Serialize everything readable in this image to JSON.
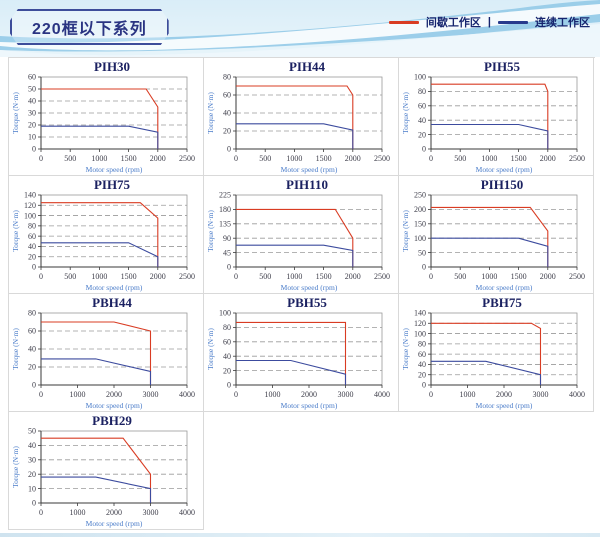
{
  "header": {
    "title": "220框以下系列",
    "legend": [
      {
        "label": "间歇工作区",
        "color": "#d93c23"
      },
      {
        "label": "连续工作区",
        "color": "#273a8c"
      }
    ],
    "legend_separator": "|"
  },
  "colors": {
    "intermittent_line": "#d93c23",
    "continuous_line": "#3c4b9e",
    "plot_border": "#999999",
    "axis": "#3a3a3a",
    "gridline": "#9a9a9a",
    "tick_text": "#41414d",
    "axis_label_text": "#4a7cc9",
    "title_text": "#1b2161",
    "cell_border": "#d9d9d9"
  },
  "chart_data": [
    {
      "type": "line",
      "title": "PIH30",
      "xlabel": "Motor speed (rpm)",
      "ylabel": "Torque (N·m)",
      "xlim": [
        0,
        2500
      ],
      "xticks": [
        0,
        500,
        1000,
        1500,
        2000,
        2500
      ],
      "ylim": [
        0,
        60
      ],
      "yticks": [
        0,
        10,
        20,
        30,
        40,
        50,
        60
      ],
      "grid": "dashed-horizontal",
      "legend_position": "none",
      "series": [
        {
          "name": "间歇工作区",
          "color": "#d93c23",
          "points": [
            [
              0,
              50
            ],
            [
              1800,
              50
            ],
            [
              2000,
              35
            ],
            [
              2000,
              0
            ]
          ]
        },
        {
          "name": "连续工作区",
          "color": "#3c4b9e",
          "points": [
            [
              0,
              19
            ],
            [
              1500,
              19
            ],
            [
              2000,
              14
            ],
            [
              2000,
              0
            ]
          ]
        }
      ]
    },
    {
      "type": "line",
      "title": "PIH44",
      "xlabel": "Motor speed (rpm)",
      "ylabel": "Torque (N·m)",
      "xlim": [
        0,
        2500
      ],
      "xticks": [
        0,
        500,
        1000,
        1500,
        2000,
        2500
      ],
      "ylim": [
        0,
        80
      ],
      "yticks": [
        0,
        20,
        40,
        60,
        80
      ],
      "grid": "dashed-horizontal",
      "legend_position": "none",
      "series": [
        {
          "name": "间歇工作区",
          "color": "#d93c23",
          "points": [
            [
              0,
              70
            ],
            [
              1900,
              70
            ],
            [
              2000,
              60
            ],
            [
              2000,
              0
            ]
          ]
        },
        {
          "name": "连续工作区",
          "color": "#3c4b9e",
          "points": [
            [
              0,
              28
            ],
            [
              1500,
              28
            ],
            [
              2000,
              21
            ],
            [
              2000,
              0
            ]
          ]
        }
      ]
    },
    {
      "type": "line",
      "title": "PIH55",
      "xlabel": "Motor speed (rpm)",
      "ylabel": "Torque (N·m)",
      "xlim": [
        0,
        2500
      ],
      "xticks": [
        0,
        500,
        1000,
        1500,
        2000,
        2500
      ],
      "ylim": [
        0,
        100
      ],
      "yticks": [
        0,
        20,
        40,
        60,
        80,
        100
      ],
      "grid": "dashed-horizontal",
      "legend_position": "none",
      "series": [
        {
          "name": "间歇工作区",
          "color": "#d93c23",
          "points": [
            [
              0,
              90
            ],
            [
              1950,
              90
            ],
            [
              2000,
              80
            ],
            [
              2000,
              0
            ]
          ]
        },
        {
          "name": "连续工作区",
          "color": "#3c4b9e",
          "points": [
            [
              0,
              34
            ],
            [
              1500,
              34
            ],
            [
              2000,
              25
            ],
            [
              2000,
              0
            ]
          ]
        }
      ]
    },
    {
      "type": "line",
      "title": "PIH75",
      "xlabel": "Motor speed (rpm)",
      "ylabel": "Torque (N·m)",
      "xlim": [
        0,
        2500
      ],
      "xticks": [
        0,
        500,
        1000,
        1500,
        2000,
        2500
      ],
      "ylim": [
        0,
        140
      ],
      "yticks": [
        0,
        20,
        40,
        60,
        80,
        100,
        120,
        140
      ],
      "grid": "dashed-horizontal",
      "legend_position": "none",
      "series": [
        {
          "name": "间歇工作区",
          "color": "#d93c23",
          "points": [
            [
              0,
              125
            ],
            [
              1700,
              125
            ],
            [
              2000,
              95
            ],
            [
              2000,
              0
            ]
          ]
        },
        {
          "name": "连续工作区",
          "color": "#3c4b9e",
          "points": [
            [
              0,
              47
            ],
            [
              1500,
              47
            ],
            [
              2000,
              20
            ],
            [
              2000,
              0
            ]
          ]
        }
      ]
    },
    {
      "type": "line",
      "title": "PIH110",
      "xlabel": "Motor speed (rpm)",
      "ylabel": "Torque (N·m)",
      "xlim": [
        0,
        2500
      ],
      "xticks": [
        0,
        500,
        1000,
        1500,
        2000,
        2500
      ],
      "ylim": [
        0,
        225
      ],
      "yticks": [
        0,
        45,
        90,
        135,
        180,
        225
      ],
      "grid": "dashed-horizontal",
      "legend_position": "none",
      "series": [
        {
          "name": "间歇工作区",
          "color": "#d93c23",
          "points": [
            [
              0,
              180
            ],
            [
              1700,
              180
            ],
            [
              2000,
              90
            ],
            [
              2000,
              0
            ]
          ]
        },
        {
          "name": "连续工作区",
          "color": "#3c4b9e",
          "points": [
            [
              0,
              68
            ],
            [
              1500,
              68
            ],
            [
              2000,
              52
            ],
            [
              2000,
              0
            ]
          ]
        }
      ]
    },
    {
      "type": "line",
      "title": "PIH150",
      "xlabel": "Motor speed (rpm)",
      "ylabel": "Torque (N·m)",
      "xlim": [
        0,
        2500
      ],
      "xticks": [
        0,
        500,
        1000,
        1500,
        2000,
        2500
      ],
      "ylim": [
        0,
        250
      ],
      "yticks": [
        0,
        50,
        100,
        150,
        200,
        250
      ],
      "grid": "dashed-horizontal",
      "legend_position": "none",
      "series": [
        {
          "name": "间歇工作区",
          "color": "#d93c23",
          "points": [
            [
              0,
              207
            ],
            [
              1700,
              207
            ],
            [
              2000,
              125
            ],
            [
              2000,
              0
            ]
          ]
        },
        {
          "name": "连续工作区",
          "color": "#3c4b9e",
          "points": [
            [
              0,
              100
            ],
            [
              1500,
              100
            ],
            [
              2000,
              72
            ],
            [
              2000,
              0
            ]
          ]
        }
      ]
    },
    {
      "type": "line",
      "title": "PBH44",
      "xlabel": "Motor speed (rpm)",
      "ylabel": "Torque (N·m)",
      "xlim": [
        0,
        4000
      ],
      "xticks": [
        0,
        1000,
        2000,
        3000,
        4000
      ],
      "ylim": [
        0,
        80
      ],
      "yticks": [
        0,
        20,
        40,
        60,
        80
      ],
      "grid": "dashed-horizontal",
      "legend_position": "none",
      "series": [
        {
          "name": "间歇工作区",
          "color": "#d93c23",
          "points": [
            [
              0,
              70
            ],
            [
              2000,
              70
            ],
            [
              3000,
              60
            ],
            [
              3000,
              0
            ]
          ]
        },
        {
          "name": "连续工作区",
          "color": "#3c4b9e",
          "points": [
            [
              0,
              29
            ],
            [
              1500,
              29
            ],
            [
              3000,
              15
            ],
            [
              3000,
              0
            ]
          ]
        }
      ]
    },
    {
      "type": "line",
      "title": "PBH55",
      "xlabel": "Motor speed (rpm)",
      "ylabel": "Torque (N·m)",
      "xlim": [
        0,
        4000
      ],
      "xticks": [
        0,
        1000,
        2000,
        3000,
        4000
      ],
      "ylim": [
        0,
        100
      ],
      "yticks": [
        0,
        20,
        40,
        60,
        80,
        100
      ],
      "grid": "dashed-horizontal",
      "legend_position": "none",
      "series": [
        {
          "name": "间歇工作区",
          "color": "#d93c23",
          "points": [
            [
              0,
              87
            ],
            [
              3000,
              87
            ],
            [
              3000,
              0
            ]
          ]
        },
        {
          "name": "连续工作区",
          "color": "#3c4b9e",
          "points": [
            [
              0,
              34
            ],
            [
              1500,
              34
            ],
            [
              3000,
              15
            ],
            [
              3000,
              0
            ]
          ]
        }
      ]
    },
    {
      "type": "line",
      "title": "PBH75",
      "xlabel": "Motor speed (rpm)",
      "ylabel": "Torque (N·m)",
      "xlim": [
        0,
        4000
      ],
      "xticks": [
        0,
        1000,
        2000,
        3000,
        4000
      ],
      "ylim": [
        0,
        140
      ],
      "yticks": [
        0,
        20,
        40,
        60,
        80,
        100,
        120,
        140
      ],
      "grid": "dashed-horizontal",
      "legend_position": "none",
      "series": [
        {
          "name": "间歇工作区",
          "color": "#d93c23",
          "points": [
            [
              0,
              120
            ],
            [
              2750,
              120
            ],
            [
              3000,
              110
            ],
            [
              3000,
              0
            ]
          ]
        },
        {
          "name": "连续工作区",
          "color": "#3c4b9e",
          "points": [
            [
              0,
              46
            ],
            [
              1500,
              46
            ],
            [
              3000,
              20
            ],
            [
              3000,
              0
            ]
          ]
        }
      ]
    },
    {
      "type": "line",
      "title": "PBH29",
      "xlabel": "Motor speed (rpm)",
      "ylabel": "Torque (N·m)",
      "xlim": [
        0,
        4000
      ],
      "xticks": [
        0,
        1000,
        2000,
        3000,
        4000
      ],
      "ylim": [
        0,
        50
      ],
      "yticks": [
        0,
        10,
        20,
        30,
        40,
        50
      ],
      "grid": "dashed-horizontal",
      "legend_position": "none",
      "series": [
        {
          "name": "间歇工作区",
          "color": "#d93c23",
          "points": [
            [
              0,
              45
            ],
            [
              2250,
              45
            ],
            [
              3000,
              20
            ],
            [
              3000,
              0
            ]
          ]
        },
        {
          "name": "连续工作区",
          "color": "#3c4b9e",
          "points": [
            [
              0,
              18
            ],
            [
              1500,
              18
            ],
            [
              3000,
              10
            ],
            [
              3000,
              0
            ]
          ]
        }
      ]
    }
  ]
}
